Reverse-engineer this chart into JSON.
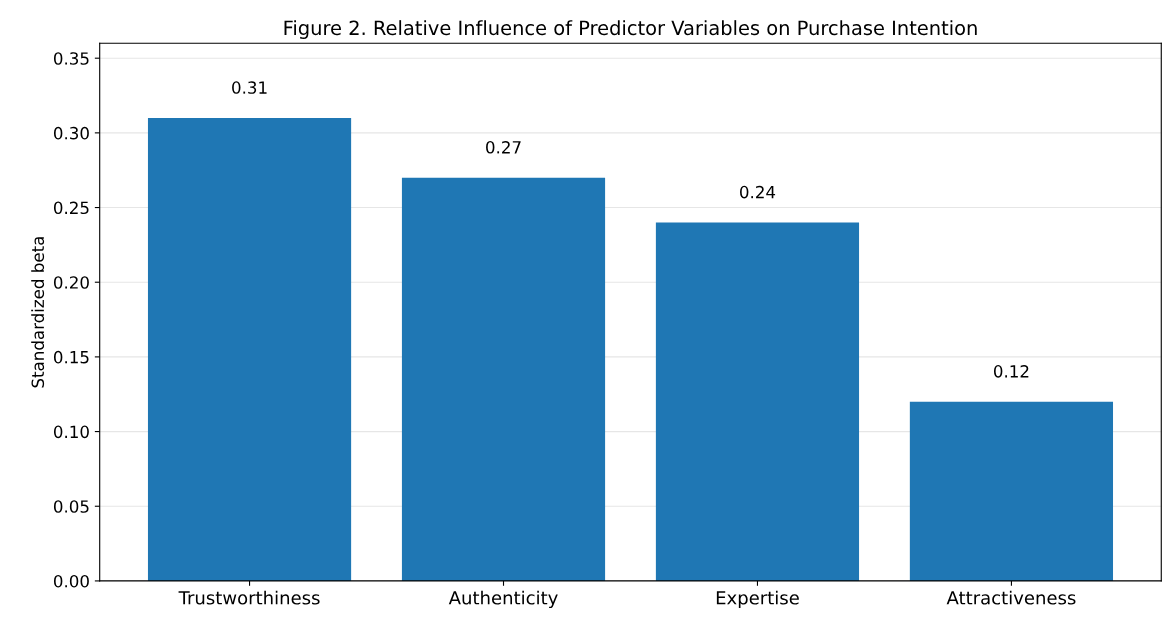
{
  "chart_data": {
    "type": "bar",
    "title": "Figure 2. Relative Influence of Predictor Variables on Purchase Intention",
    "ylabel": "Standardized beta",
    "categories": [
      "Trustworthiness",
      "Authenticity",
      "Expertise",
      "Attractiveness"
    ],
    "values": [
      0.31,
      0.27,
      0.24,
      0.12
    ],
    "color": "#1f77b4",
    "ylim": [
      0,
      0.36
    ],
    "yticks": [
      {
        "value": 0,
        "label": "0.00"
      },
      {
        "value": 0.05,
        "label": "0.05"
      },
      {
        "value": 0.1,
        "label": "0.10"
      },
      {
        "value": 0.15,
        "label": "0.15"
      },
      {
        "value": 0.2,
        "label": "0.20"
      },
      {
        "value": 0.25,
        "label": "0.25"
      },
      {
        "value": 0.3,
        "label": "0.30"
      },
      {
        "value": 0.35,
        "label": "0.35"
      }
    ],
    "grid": "y",
    "data_labels": true
  }
}
